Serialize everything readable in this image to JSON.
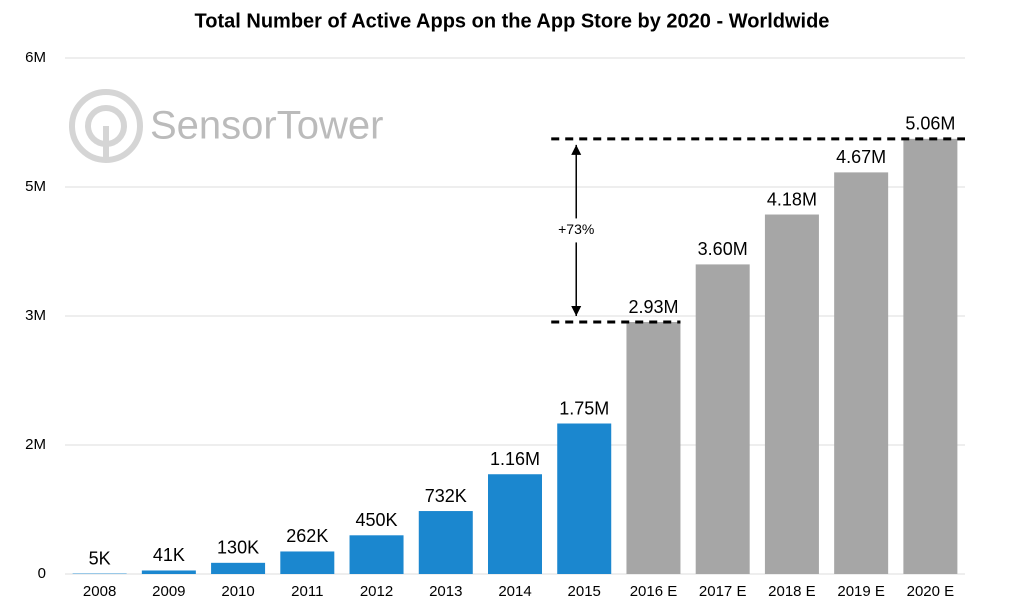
{
  "chart_data": {
    "type": "bar",
    "title": "Total Number of Active Apps on the App Store by 2020 - Worldwide",
    "watermark": "SensorTower",
    "categories": [
      "2008",
      "2009",
      "2010",
      "2011",
      "2012",
      "2013",
      "2014",
      "2015",
      "2016 E",
      "2017 E",
      "2018 E",
      "2019 E",
      "2020 E"
    ],
    "values": [
      5000,
      41000,
      130000,
      262000,
      450000,
      732000,
      1160000,
      1750000,
      2930000,
      3600000,
      4180000,
      4670000,
      5060000
    ],
    "value_labels": [
      "5K",
      "41K",
      "130K",
      "262K",
      "450K",
      "732K",
      "1.16M",
      "1.75M",
      "2.93M",
      "3.60M",
      "4.18M",
      "4.67M",
      "5.06M"
    ],
    "colors": [
      "#1b87cf",
      "#1b87cf",
      "#1b87cf",
      "#1b87cf",
      "#1b87cf",
      "#1b87cf",
      "#1b87cf",
      "#1b87cf",
      "#a6a6a6",
      "#a6a6a6",
      "#a6a6a6",
      "#a6a6a6",
      "#a6a6a6"
    ],
    "ylim": [
      0,
      6000000
    ],
    "yticks": [
      0,
      {
        "value": 1500000,
        "label": "2M"
      },
      {
        "value": 3000000,
        "label": "3M"
      },
      {
        "value": 4500000,
        "label": "5M"
      },
      {
        "value": 6000000,
        "label": "6M"
      }
    ],
    "grid": true,
    "annotation": {
      "text": "+73%",
      "from": 8,
      "to": 12
    }
  }
}
